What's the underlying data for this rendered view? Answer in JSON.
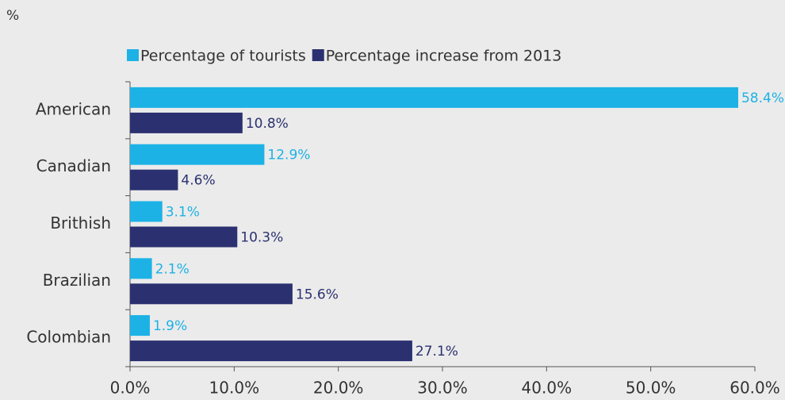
{
  "chart_data": {
    "type": "bar",
    "orientation": "horizontal",
    "title": "%",
    "categories": [
      "American",
      "Canadian",
      "Brithish",
      "Brazilian",
      "Colombian"
    ],
    "series": [
      {
        "name": "Percentage of tourists",
        "color": "#1cb2e6",
        "values": [
          58.4,
          12.9,
          3.1,
          2.1,
          1.9
        ],
        "value_labels": [
          "58.4%",
          "12.9%",
          "3.1%",
          "2.1%",
          "1.9%"
        ]
      },
      {
        "name": "Percentage increase from 2013",
        "color": "#2b3170",
        "values": [
          10.8,
          4.6,
          10.3,
          15.6,
          27.1
        ],
        "value_labels": [
          "10.8%",
          "4.6%",
          "10.3%",
          "15.6%",
          "27.1%"
        ]
      }
    ],
    "xlim": [
      0,
      60
    ],
    "xticks": [
      {
        "value": 0,
        "label": "0.0%"
      },
      {
        "value": 10,
        "label": "10.0%"
      },
      {
        "value": 20,
        "label": "20.0%"
      },
      {
        "value": 30,
        "label": "30.0%"
      },
      {
        "value": 40,
        "label": "40.0%"
      },
      {
        "value": 50,
        "label": "50.0%"
      },
      {
        "value": 60,
        "label": "60.0%"
      }
    ],
    "legend": "top"
  }
}
